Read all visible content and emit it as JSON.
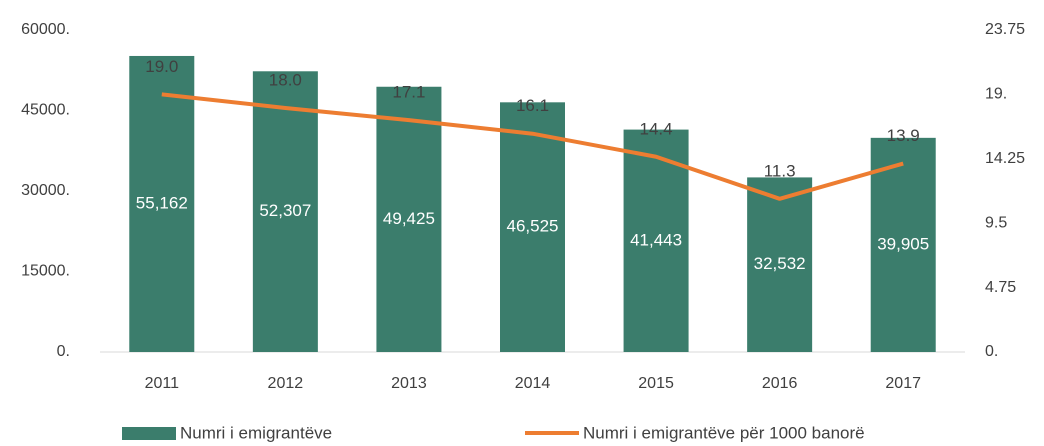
{
  "chart_data": {
    "type": "bar_line",
    "categories": [
      "2011",
      "2012",
      "2013",
      "2014",
      "2015",
      "2016",
      "2017"
    ],
    "series": [
      {
        "name": "Numri i emigrantëve",
        "color": "#3b7d6c",
        "type": "bar",
        "values": [
          55162,
          52307,
          49425,
          46525,
          41443,
          32532,
          39905
        ],
        "value_labels": [
          "55,162",
          "52,307",
          "49,425",
          "46,525",
          "41,443",
          "32,532",
          "39,905"
        ]
      },
      {
        "name": "Numri i emigrantëve për 1000 banorë",
        "color": "#ed7d31",
        "type": "line",
        "axis": "y2",
        "values": [
          19.0,
          18.0,
          17.1,
          16.1,
          14.4,
          11.3,
          13.9
        ],
        "value_labels": [
          "19.0",
          "18.0",
          "17.1",
          "16.1",
          "14.4",
          "11.3",
          "13.9"
        ]
      }
    ],
    "ylim": [
      0,
      60000
    ],
    "yticks": [
      {
        "value": 0,
        "label": "0."
      },
      {
        "value": 15000,
        "label": "15000."
      },
      {
        "value": 30000,
        "label": "30000."
      },
      {
        "value": 45000,
        "label": "45000."
      },
      {
        "value": 60000,
        "label": "60000."
      }
    ],
    "y2lim": [
      0,
      23.75
    ],
    "y2ticks": [
      {
        "value": 0,
        "label": "0."
      },
      4.75,
      9.5,
      14.25,
      {
        "value": 19,
        "label": "19."
      },
      23.75
    ],
    "grid": false,
    "legend": "bottom"
  }
}
